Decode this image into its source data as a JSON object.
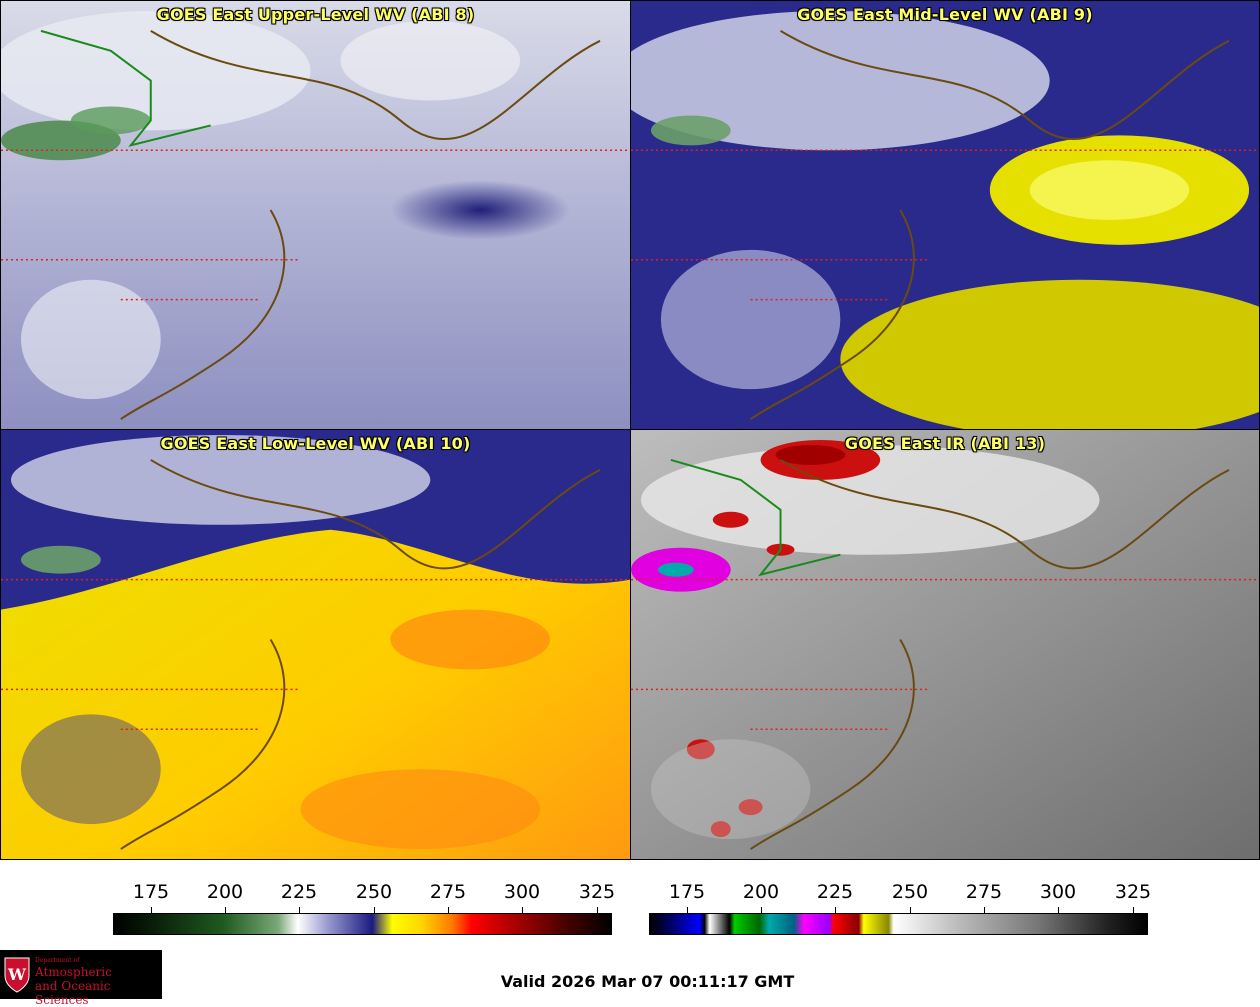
{
  "panels": [
    {
      "title": "GOES East Upper-Level WV (ABI 8)"
    },
    {
      "title": "GOES East Mid-Level WV (ABI 9)"
    },
    {
      "title": "GOES East Low-Level WV (ABI 10)"
    },
    {
      "title": "GOES East IR (ABI 13)"
    }
  ],
  "colorbars": [
    {
      "ticks": [
        "175",
        "200",
        "225",
        "250",
        "275",
        "300",
        "325"
      ]
    },
    {
      "ticks": [
        "175",
        "200",
        "225",
        "250",
        "275",
        "300",
        "325"
      ]
    }
  ],
  "logo": {
    "line1": "Department of",
    "line2": "Atmospheric",
    "line3": "and Oceanic Sciences"
  },
  "valid_time": "Valid 2026 Mar 07 00:11:17 GMT"
}
